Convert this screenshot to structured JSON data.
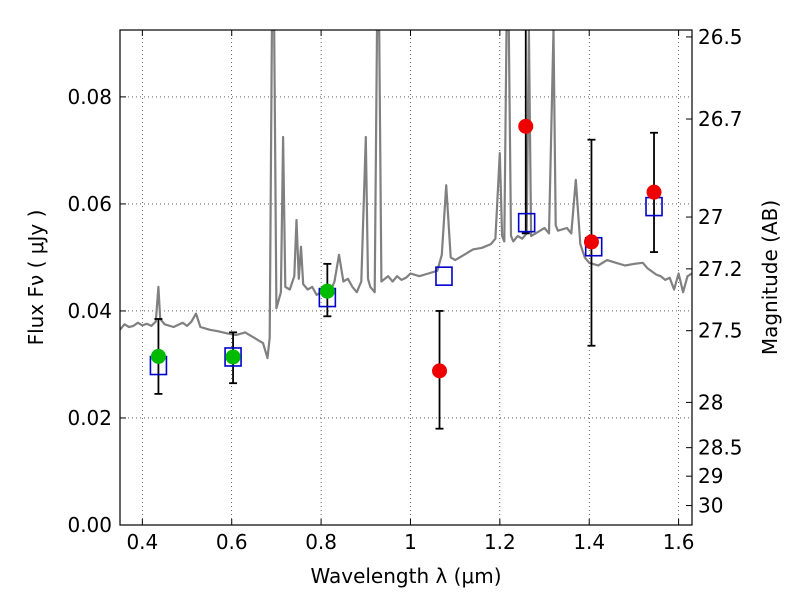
{
  "chart_data": {
    "type": "scatter",
    "title": "",
    "xlabel": "Wavelength  λ (μm)",
    "ylabel": "Flux  Fν  ( μJy )",
    "y2label": "Magnitude (AB)",
    "xlim": [
      0.35,
      1.63
    ],
    "ylim": [
      0.0,
      0.0925
    ],
    "grid": true,
    "x_ticks": [
      {
        "value": 0.4,
        "label": "0.4"
      },
      {
        "value": 0.6,
        "label": "0.6"
      },
      {
        "value": 0.8,
        "label": "0.8"
      },
      {
        "value": 1.0,
        "label": "1"
      },
      {
        "value": 1.2,
        "label": "1.2"
      },
      {
        "value": 1.4,
        "label": "1.4"
      },
      {
        "value": 1.6,
        "label": "1.6"
      }
    ],
    "y_ticks": [
      {
        "value": 0.0,
        "label": "0.00"
      },
      {
        "value": 0.02,
        "label": "0.02"
      },
      {
        "value": 0.04,
        "label": "0.04"
      },
      {
        "value": 0.06,
        "label": "0.06"
      },
      {
        "value": 0.08,
        "label": "0.08"
      }
    ],
    "magnitude_ticks": [
      {
        "mag": 26.5,
        "label": "26.5"
      },
      {
        "mag": 26.7,
        "label": "26.7"
      },
      {
        "mag": 27.0,
        "label": "27"
      },
      {
        "mag": 27.2,
        "label": "27.2"
      },
      {
        "mag": 27.5,
        "label": "27.5"
      },
      {
        "mag": 28.0,
        "label": "28"
      },
      {
        "mag": 28.5,
        "label": "28.5"
      },
      {
        "mag": 29.0,
        "label": "29"
      },
      {
        "mag": 30.0,
        "label": "30"
      }
    ],
    "series": [
      {
        "kind": "spectrum",
        "color": "#808080",
        "points": [
          [
            0.35,
            0.0365
          ],
          [
            0.36,
            0.0375
          ],
          [
            0.37,
            0.037
          ],
          [
            0.38,
            0.0372
          ],
          [
            0.39,
            0.0378
          ],
          [
            0.4,
            0.0373
          ],
          [
            0.41,
            0.0376
          ],
          [
            0.42,
            0.0372
          ],
          [
            0.43,
            0.038
          ],
          [
            0.436,
            0.0445
          ],
          [
            0.44,
            0.0385
          ],
          [
            0.45,
            0.0375
          ],
          [
            0.47,
            0.037
          ],
          [
            0.49,
            0.0378
          ],
          [
            0.5,
            0.0372
          ],
          [
            0.51,
            0.038
          ],
          [
            0.52,
            0.0395
          ],
          [
            0.53,
            0.037
          ],
          [
            0.55,
            0.0365
          ],
          [
            0.57,
            0.0362
          ],
          [
            0.59,
            0.0358
          ],
          [
            0.61,
            0.0355
          ],
          [
            0.63,
            0.036
          ],
          [
            0.65,
            0.035
          ],
          [
            0.66,
            0.0345
          ],
          [
            0.67,
            0.034
          ],
          [
            0.68,
            0.0312
          ],
          [
            0.685,
            0.035
          ],
          [
            0.69,
            0.0925
          ],
          [
            0.695,
            0.0925
          ],
          [
            0.7,
            0.0405
          ],
          [
            0.71,
            0.0435
          ],
          [
            0.715,
            0.0725
          ],
          [
            0.72,
            0.0445
          ],
          [
            0.73,
            0.044
          ],
          [
            0.74,
            0.0465
          ],
          [
            0.745,
            0.057
          ],
          [
            0.75,
            0.046
          ],
          [
            0.755,
            0.052
          ],
          [
            0.76,
            0.045
          ],
          [
            0.77,
            0.044
          ],
          [
            0.78,
            0.0445
          ],
          [
            0.79,
            0.043
          ],
          [
            0.8,
            0.0435
          ],
          [
            0.81,
            0.0435
          ],
          [
            0.82,
            0.0435
          ],
          [
            0.83,
            0.0455
          ],
          [
            0.84,
            0.0505
          ],
          [
            0.85,
            0.0455
          ],
          [
            0.86,
            0.046
          ],
          [
            0.87,
            0.0445
          ],
          [
            0.88,
            0.0435
          ],
          [
            0.89,
            0.0455
          ],
          [
            0.9,
            0.0725
          ],
          [
            0.905,
            0.046
          ],
          [
            0.91,
            0.0445
          ],
          [
            0.92,
            0.0435
          ],
          [
            0.925,
            0.0925
          ],
          [
            0.93,
            0.0925
          ],
          [
            0.935,
            0.0455
          ],
          [
            0.95,
            0.0465
          ],
          [
            0.96,
            0.0455
          ],
          [
            0.97,
            0.0465
          ],
          [
            0.98,
            0.0458
          ],
          [
            0.99,
            0.0462
          ],
          [
            1.0,
            0.047
          ],
          [
            1.02,
            0.0465
          ],
          [
            1.04,
            0.047
          ],
          [
            1.06,
            0.0475
          ],
          [
            1.07,
            0.0505
          ],
          [
            1.08,
            0.0635
          ],
          [
            1.09,
            0.05
          ],
          [
            1.1,
            0.0495
          ],
          [
            1.12,
            0.0505
          ],
          [
            1.14,
            0.0515
          ],
          [
            1.16,
            0.0518
          ],
          [
            1.18,
            0.0525
          ],
          [
            1.19,
            0.0535
          ],
          [
            1.2,
            0.0695
          ],
          [
            1.205,
            0.054
          ],
          [
            1.21,
            0.053
          ],
          [
            1.215,
            0.0925
          ],
          [
            1.22,
            0.0925
          ],
          [
            1.225,
            0.054
          ],
          [
            1.23,
            0.053
          ],
          [
            1.24,
            0.054
          ],
          [
            1.25,
            0.0535
          ],
          [
            1.26,
            0.0545
          ],
          [
            1.265,
            0.0925
          ],
          [
            1.27,
            0.054
          ],
          [
            1.28,
            0.0545
          ],
          [
            1.29,
            0.055
          ],
          [
            1.3,
            0.0555
          ],
          [
            1.31,
            0.0545
          ],
          [
            1.32,
            0.0925
          ],
          [
            1.325,
            0.056
          ],
          [
            1.33,
            0.055
          ],
          [
            1.35,
            0.0555
          ],
          [
            1.36,
            0.0545
          ],
          [
            1.37,
            0.0645
          ],
          [
            1.38,
            0.0525
          ],
          [
            1.39,
            0.05
          ],
          [
            1.4,
            0.049
          ],
          [
            1.42,
            0.0485
          ],
          [
            1.44,
            0.0495
          ],
          [
            1.46,
            0.049
          ],
          [
            1.48,
            0.0485
          ],
          [
            1.5,
            0.0488
          ],
          [
            1.52,
            0.049
          ],
          [
            1.53,
            0.048
          ],
          [
            1.55,
            0.0468
          ],
          [
            1.56,
            0.0465
          ],
          [
            1.57,
            0.0458
          ],
          [
            1.58,
            0.0462
          ],
          [
            1.59,
            0.044
          ],
          [
            1.6,
            0.047
          ],
          [
            1.61,
            0.0435
          ],
          [
            1.62,
            0.0465
          ],
          [
            1.63,
            0.047
          ]
        ]
      },
      {
        "kind": "model_boxes",
        "color": "#0000cc",
        "points": [
          [
            0.436,
            0.0298
          ],
          [
            0.603,
            0.0314
          ],
          [
            0.814,
            0.0425
          ],
          [
            1.075,
            0.0465
          ],
          [
            1.26,
            0.0565
          ],
          [
            1.41,
            0.052
          ],
          [
            1.545,
            0.0595
          ]
        ]
      },
      {
        "kind": "detections",
        "color": "#00bb00",
        "points": [
          {
            "x": 0.436,
            "y": 0.0315,
            "lo": 0.0245,
            "hi": 0.0385
          },
          {
            "x": 0.603,
            "y": 0.0314,
            "lo": 0.0265,
            "hi": 0.036
          },
          {
            "x": 0.814,
            "y": 0.0437,
            "lo": 0.039,
            "hi": 0.0488
          }
        ]
      },
      {
        "kind": "low_significance",
        "color": "#ee0000",
        "points": [
          {
            "x": 1.065,
            "y": 0.0288,
            "lo": 0.018,
            "hi": 0.04
          },
          {
            "x": 1.258,
            "y": 0.0745,
            "lo": 0.0545,
            "hi": 0.0925
          },
          {
            "x": 1.405,
            "y": 0.0529,
            "lo": 0.0335,
            "hi": 0.072
          },
          {
            "x": 1.545,
            "y": 0.0622,
            "lo": 0.051,
            "hi": 0.0733
          }
        ]
      }
    ]
  }
}
